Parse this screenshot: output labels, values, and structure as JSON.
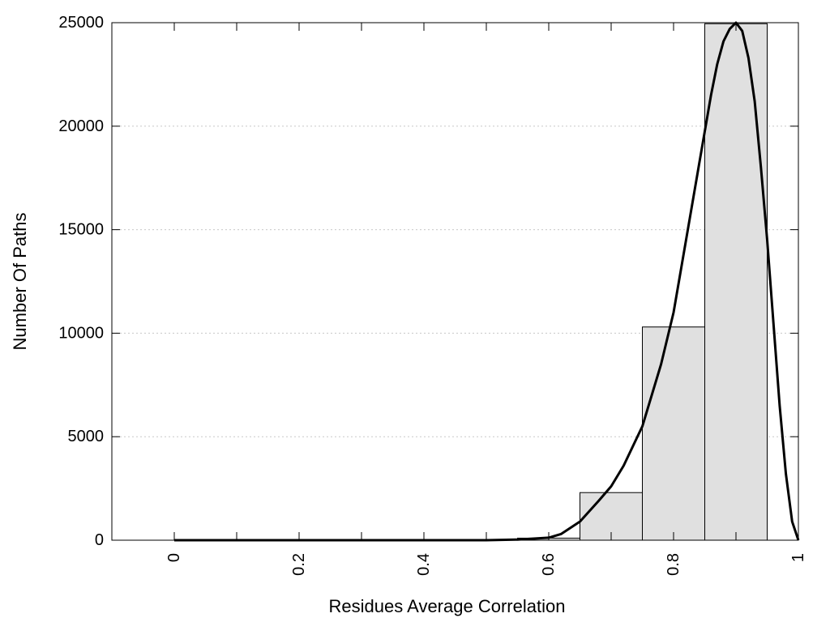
{
  "chart_data": {
    "type": "bar",
    "title": "",
    "xlabel": "Residues Average Correlation",
    "ylabel": "Number Of Paths",
    "xlim": [
      -0.1,
      1.0
    ],
    "ylim": [
      0,
      25000
    ],
    "grid": true,
    "x_ticks": [
      {
        "value": 0,
        "label": "0"
      },
      {
        "value": 0.2,
        "label": "0.2"
      },
      {
        "value": 0.4,
        "label": "0.4"
      },
      {
        "value": 0.6,
        "label": "0.6"
      },
      {
        "value": 0.8,
        "label": "0.8"
      },
      {
        "value": 1.0,
        "label": "1"
      }
    ],
    "x_minor_ticks": [
      0.1,
      0.3,
      0.5,
      0.7,
      0.9
    ],
    "y_ticks": [
      {
        "value": 0,
        "label": "0"
      },
      {
        "value": 5000,
        "label": "5000"
      },
      {
        "value": 10000,
        "label": "10000"
      },
      {
        "value": 15000,
        "label": "15000"
      },
      {
        "value": 20000,
        "label": "20000"
      },
      {
        "value": 25000,
        "label": "25000"
      }
    ],
    "bins": [
      {
        "start": 0.0,
        "end": 0.05,
        "value": 0
      },
      {
        "start": 0.05,
        "end": 0.15,
        "value": 0
      },
      {
        "start": 0.15,
        "end": 0.25,
        "value": 0
      },
      {
        "start": 0.25,
        "end": 0.35,
        "value": 0
      },
      {
        "start": 0.35,
        "end": 0.45,
        "value": 0
      },
      {
        "start": 0.45,
        "end": 0.55,
        "value": 5
      },
      {
        "start": 0.55,
        "end": 0.65,
        "value": 100
      },
      {
        "start": 0.65,
        "end": 0.75,
        "value": 2300
      },
      {
        "start": 0.75,
        "end": 0.85,
        "value": 10300
      },
      {
        "start": 0.85,
        "end": 0.95,
        "value": 24950
      }
    ],
    "fit_curve": {
      "x": [
        0,
        0.5,
        0.55,
        0.6,
        0.62,
        0.65,
        0.68,
        0.7,
        0.72,
        0.75,
        0.78,
        0.8,
        0.82,
        0.84,
        0.86,
        0.87,
        0.88,
        0.89,
        0.9,
        0.91,
        0.92,
        0.93,
        0.94,
        0.95,
        0.96,
        0.97,
        0.98,
        0.99,
        1.0
      ],
      "y": [
        0,
        0,
        30,
        120,
        300,
        900,
        1900,
        2600,
        3600,
        5500,
        8500,
        11000,
        14500,
        18000,
        21500,
        23000,
        24100,
        24700,
        25000,
        24600,
        23300,
        21200,
        18000,
        14500,
        10500,
        6500,
        3200,
        900,
        0
      ]
    },
    "colors": {
      "bar_fill": "#e0e0e0",
      "bar_stroke": "#000000",
      "curve": "#000000",
      "grid": "#c8c8c8"
    }
  }
}
